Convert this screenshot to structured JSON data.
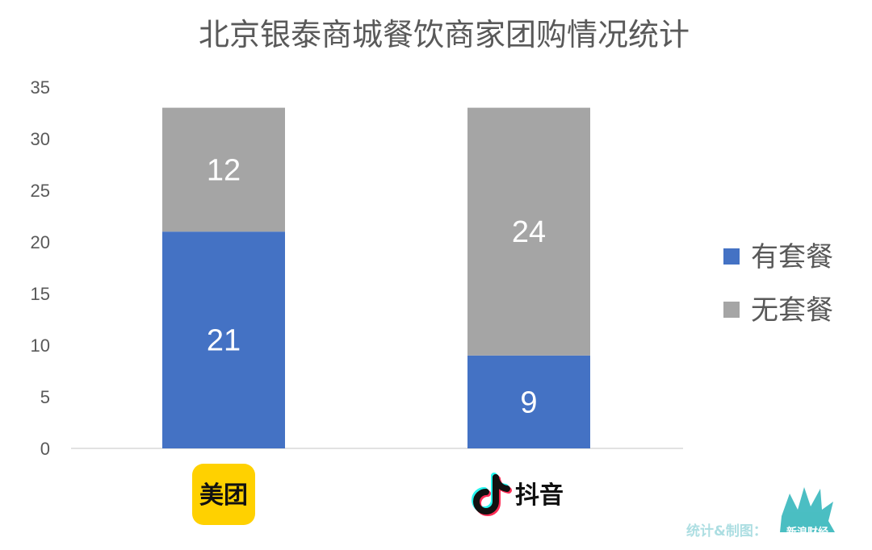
{
  "chart_data": {
    "type": "bar",
    "stacked": true,
    "title": "北京银泰商城餐饮商家团购情况统计",
    "categories": [
      "美团",
      "抖音"
    ],
    "series": [
      {
        "name": "有套餐",
        "values": [
          21,
          9
        ],
        "color": "#4472C4"
      },
      {
        "name": "无套餐",
        "values": [
          12,
          24
        ],
        "color": "#A5A5A5"
      }
    ],
    "ylim": [
      0,
      35
    ],
    "yticks": [
      0,
      5,
      10,
      15,
      20,
      25,
      30,
      35
    ],
    "grid": false,
    "legend_position": "right"
  },
  "brands": {
    "meituan": {
      "logo_text": "美团",
      "color": "#FFD100"
    },
    "douyin": {
      "label": "抖音",
      "icon": "douyin-note-icon"
    }
  },
  "watermark": {
    "text": "统计&制图：",
    "logo_text": "新浪财经"
  }
}
